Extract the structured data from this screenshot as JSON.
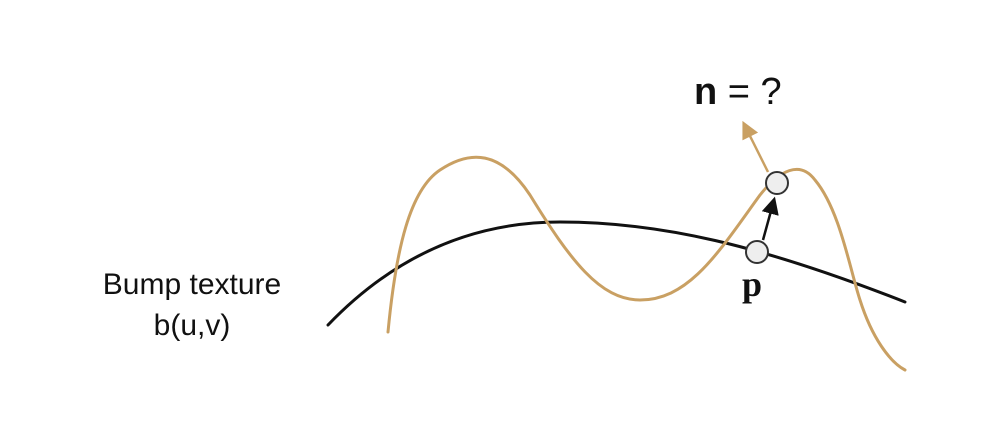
{
  "diagram": {
    "caption_line1": "Bump texture",
    "caption_line2": "b(u,v)",
    "point_label": "p",
    "normal_symbol": "n",
    "normal_rest": " = ?",
    "colors": {
      "surface_curve": "#111111",
      "bump_curve": "#c9a063",
      "normal_arrow": "#c9a063",
      "point_fill": "#eeeeee",
      "point_stroke": "#333333",
      "displacement_arrow": "#111111"
    },
    "icons": {
      "surface_point": "circle-marker",
      "displaced_point": "circle-marker",
      "normal_arrow": "arrow-icon"
    }
  }
}
